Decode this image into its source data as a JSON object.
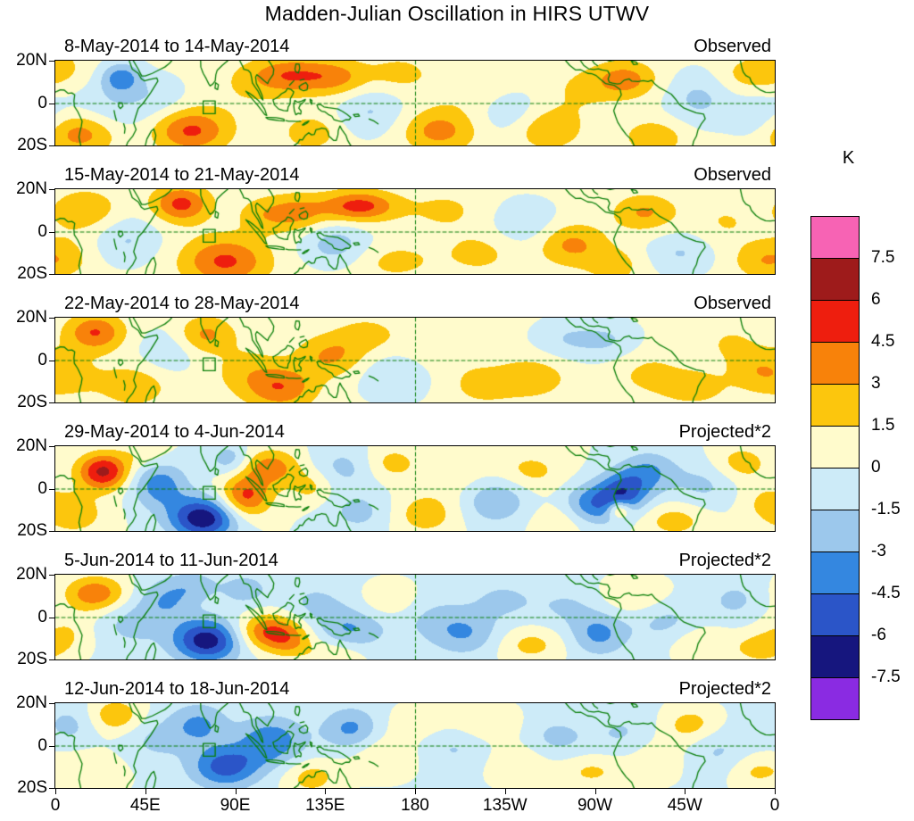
{
  "chart_data": {
    "type": "heatmap",
    "subtype": "filled-contour longitude-latitude anomaly maps, 6 stacked panels",
    "title": "Madden-Julian Oscillation in HIRS UTWV",
    "units": "K",
    "lon_axis": {
      "range": [
        0,
        360
      ],
      "tick_positions_deg": [
        0,
        45,
        90,
        135,
        180,
        225,
        270,
        315,
        360
      ],
      "tick_labels": [
        "0",
        "45E",
        "90E",
        "135E",
        "180",
        "135W",
        "90W",
        "45W",
        "0"
      ]
    },
    "lat_axis": {
      "range": [
        -20,
        20
      ],
      "tick_positions_deg": [
        20,
        0,
        -20
      ],
      "tick_labels": [
        "20N",
        "0",
        "20S"
      ]
    },
    "contour_levels": [
      -7.5,
      -6,
      -4.5,
      -3,
      -1.5,
      0,
      1.5,
      3,
      4.5,
      6,
      7.5
    ],
    "palette_neg_to_pos": [
      "#8A2BE2",
      "#16167E",
      "#2B55C8",
      "#3487E0",
      "#9CC8EC",
      "#CDEBF8",
      "#FFFBCC",
      "#FCC60D",
      "#F8820A",
      "#EE1E0E",
      "#9E1B1B",
      "#F763B4"
    ],
    "colorbar": {
      "title": "K",
      "labels_top_to_bottom": [
        "7.5",
        "6",
        "4.5",
        "3",
        "1.5",
        "0",
        "-1.5",
        "-3",
        "-4.5",
        "-6",
        "-7.5"
      ]
    },
    "overlays": {
      "coastline_color": "#0A7F0A",
      "equator_dashed": true,
      "dateline_dashed": true,
      "site_marker_lon_lat": [
        77,
        -2
      ]
    },
    "panels": [
      {
        "date_range": "8-May-2014 to 14-May-2014",
        "tag": "Observed",
        "baseline": 0.4,
        "anomaly_blobs": [
          [
            12,
            -14,
            3.6,
            13,
            7
          ],
          [
            2,
            16,
            1.6,
            10,
            7
          ],
          [
            33,
            12,
            -4,
            7,
            5
          ],
          [
            28,
            -2,
            -1.8,
            16,
            9
          ],
          [
            52,
            4,
            -1.2,
            10,
            7
          ],
          [
            68,
            -13,
            4.4,
            13,
            7
          ],
          [
            95,
            5,
            0.8,
            14,
            9
          ],
          [
            118,
            13,
            4,
            15,
            6
          ],
          [
            142,
            12,
            2.4,
            11,
            6
          ],
          [
            128,
            -14,
            2,
            10,
            6
          ],
          [
            158,
            -4,
            -2,
            12,
            8
          ],
          [
            172,
            14,
            1.6,
            11,
            6
          ],
          [
            192,
            -13,
            3.2,
            13,
            7
          ],
          [
            210,
            6,
            1,
            16,
            8
          ],
          [
            228,
            -4,
            -1.8,
            12,
            8
          ],
          [
            246,
            -12,
            2.6,
            12,
            7
          ],
          [
            262,
            6,
            1.2,
            12,
            8
          ],
          [
            285,
            11,
            3.4,
            11,
            6
          ],
          [
            300,
            -16,
            2.2,
            11,
            6
          ],
          [
            322,
            2,
            -2.2,
            12,
            9
          ],
          [
            345,
            13,
            1.6,
            10,
            6
          ],
          [
            352,
            -7,
            -1.6,
            10,
            8
          ]
        ]
      },
      {
        "date_range": "15-May-2014 to 21-May-2014",
        "tag": "Observed",
        "baseline": 0.4,
        "anomaly_blobs": [
          [
            15,
            10,
            2.4,
            12,
            7
          ],
          [
            5,
            -12,
            1.6,
            10,
            7
          ],
          [
            36,
            -4,
            -2,
            12,
            8
          ],
          [
            63,
            13,
            4.6,
            10,
            6
          ],
          [
            85,
            -14,
            4.4,
            15,
            8
          ],
          [
            105,
            8,
            2,
            10,
            6
          ],
          [
            122,
            9,
            2.8,
            10,
            6
          ],
          [
            152,
            12,
            4.8,
            13,
            5
          ],
          [
            140,
            -6,
            -2.6,
            12,
            7
          ],
          [
            170,
            -14,
            1.6,
            14,
            6
          ],
          [
            195,
            10,
            1.4,
            14,
            7
          ],
          [
            212,
            -10,
            1.6,
            13,
            7
          ],
          [
            235,
            4,
            -1.8,
            12,
            8
          ],
          [
            258,
            -6,
            3,
            12,
            7
          ],
          [
            280,
            -16,
            1.8,
            10,
            6
          ],
          [
            295,
            9,
            2.8,
            11,
            6
          ],
          [
            313,
            -10,
            -2,
            12,
            7
          ],
          [
            335,
            4,
            1.2,
            12,
            8
          ],
          [
            352,
            -14,
            1.8,
            10,
            6
          ]
        ]
      },
      {
        "date_range": "22-May-2014 to 28-May-2014",
        "tag": "Observed",
        "baseline": 0.4,
        "anomaly_blobs": [
          [
            20,
            13,
            4.2,
            10,
            6
          ],
          [
            8,
            -8,
            1.4,
            12,
            8
          ],
          [
            40,
            -12,
            2.2,
            12,
            7
          ],
          [
            56,
            4,
            -1.6,
            11,
            8
          ],
          [
            75,
            12,
            3,
            10,
            6
          ],
          [
            95,
            -5,
            1.6,
            12,
            8
          ],
          [
            113,
            -13,
            3.8,
            12,
            7
          ],
          [
            138,
            2,
            2.8,
            12,
            7
          ],
          [
            156,
            12,
            1.6,
            11,
            6
          ],
          [
            170,
            -8,
            -2,
            13,
            8
          ],
          [
            192,
            6,
            1,
            15,
            8
          ],
          [
            214,
            -12,
            1.6,
            13,
            7
          ],
          [
            240,
            -8,
            2,
            12,
            7
          ],
          [
            256,
            10,
            -1.8,
            12,
            7
          ],
          [
            278,
            9,
            -1.8,
            11,
            7
          ],
          [
            296,
            -6,
            1.4,
            13,
            8
          ],
          [
            320,
            -13,
            1.8,
            12,
            6
          ],
          [
            338,
            8,
            1.2,
            11,
            7
          ],
          [
            352,
            -5,
            2,
            10,
            7
          ]
        ]
      },
      {
        "date_range": "29-May-2014 to 4-Jun-2014",
        "tag": "Projected*2",
        "baseline": 0,
        "anomaly_blobs": [
          [
            24,
            8,
            6.4,
            9,
            6
          ],
          [
            10,
            -12,
            2.4,
            11,
            7
          ],
          [
            45,
            16,
            1.4,
            9,
            5
          ],
          [
            52,
            2,
            -3.8,
            10,
            8
          ],
          [
            74,
            -14,
            -7.2,
            12,
            7
          ],
          [
            95,
            -4,
            5,
            9,
            7
          ],
          [
            108,
            10,
            3.8,
            10,
            6
          ],
          [
            87,
            14,
            -2.4,
            7,
            5
          ],
          [
            128,
            1,
            2,
            8,
            6
          ],
          [
            145,
            10,
            -2,
            12,
            7
          ],
          [
            152,
            -11,
            -2,
            12,
            7
          ],
          [
            168,
            12,
            2.2,
            10,
            6
          ],
          [
            185,
            -12,
            2.4,
            12,
            7
          ],
          [
            205,
            5,
            1.2,
            14,
            8
          ],
          [
            220,
            -5,
            -3.2,
            12,
            8
          ],
          [
            238,
            8,
            2,
            12,
            7
          ],
          [
            254,
            -15,
            1.6,
            11,
            6
          ],
          [
            268,
            -8,
            -4,
            10,
            7
          ],
          [
            284,
            -2,
            -5,
            9,
            7
          ],
          [
            282,
            -10,
            4.4,
            4,
            3
          ],
          [
            297,
            8,
            -3,
            10,
            7
          ],
          [
            310,
            -15,
            2.2,
            12,
            6
          ],
          [
            325,
            2,
            -1.8,
            12,
            8
          ],
          [
            343,
            12,
            2.4,
            10,
            6
          ],
          [
            354,
            -6,
            1.4,
            9,
            7
          ]
        ]
      },
      {
        "date_range": "5-Jun-2014 to 11-Jun-2014",
        "tag": "Projected*2",
        "baseline": -0.2,
        "anomaly_blobs": [
          [
            20,
            11,
            4.4,
            11,
            6
          ],
          [
            5,
            -8,
            1.8,
            10,
            7
          ],
          [
            38,
            -3,
            -1.8,
            12,
            8
          ],
          [
            56,
            8,
            -2.6,
            10,
            7
          ],
          [
            76,
            -11,
            -6.8,
            12,
            7
          ],
          [
            70,
            15,
            -1.8,
            9,
            5
          ],
          [
            108,
            -7,
            5.2,
            12,
            6
          ],
          [
            118,
            -13,
            1.8,
            8,
            5
          ],
          [
            95,
            13,
            -2.2,
            8,
            5
          ],
          [
            130,
            6,
            -1.6,
            12,
            8
          ],
          [
            148,
            -6,
            -2.8,
            12,
            7
          ],
          [
            140,
            -18,
            2,
            10,
            5
          ],
          [
            168,
            8,
            1.8,
            10,
            6
          ],
          [
            188,
            0,
            -1.4,
            14,
            8
          ],
          [
            205,
            -8,
            -2.6,
            12,
            7
          ],
          [
            224,
            8,
            -1.6,
            12,
            7
          ],
          [
            238,
            -13,
            2.2,
            12,
            6
          ],
          [
            256,
            5,
            -1.4,
            12,
            7
          ],
          [
            272,
            -8,
            -3.2,
            10,
            7
          ],
          [
            290,
            10,
            1.8,
            12,
            6
          ],
          [
            306,
            -3,
            -1.8,
            12,
            8
          ],
          [
            322,
            -12,
            1.8,
            12,
            6
          ],
          [
            340,
            8,
            -1.6,
            10,
            7
          ],
          [
            352,
            -15,
            2.2,
            9,
            5
          ]
        ]
      },
      {
        "date_range": "12-Jun-2014 to 18-Jun-2014",
        "tag": "Projected*2",
        "baseline": -0.2,
        "anomaly_blobs": [
          [
            8,
            10,
            -1.8,
            10,
            7
          ],
          [
            30,
            14,
            3,
            10,
            6
          ],
          [
            18,
            -12,
            1.6,
            12,
            7
          ],
          [
            50,
            3,
            -1.6,
            12,
            8
          ],
          [
            72,
            10,
            -3,
            10,
            7
          ],
          [
            85,
            -10,
            -5,
            12,
            7
          ],
          [
            108,
            2,
            -4,
            12,
            8
          ],
          [
            128,
            -15,
            2.4,
            10,
            6
          ],
          [
            148,
            8,
            -3.2,
            10,
            7
          ],
          [
            165,
            -5,
            1.8,
            12,
            7
          ],
          [
            182,
            10,
            1.4,
            12,
            6
          ],
          [
            200,
            0,
            -1.6,
            14,
            8
          ],
          [
            216,
            10,
            2,
            12,
            6
          ],
          [
            232,
            -8,
            1.8,
            12,
            7
          ],
          [
            250,
            3,
            -1.8,
            12,
            8
          ],
          [
            268,
            -12,
            2,
            12,
            6
          ],
          [
            285,
            5,
            -1.6,
            12,
            8
          ],
          [
            300,
            -5,
            1.4,
            12,
            8
          ],
          [
            318,
            10,
            2.4,
            10,
            6
          ],
          [
            332,
            -3,
            -1.6,
            12,
            8
          ],
          [
            350,
            -12,
            2,
            10,
            6
          ]
        ]
      }
    ]
  }
}
